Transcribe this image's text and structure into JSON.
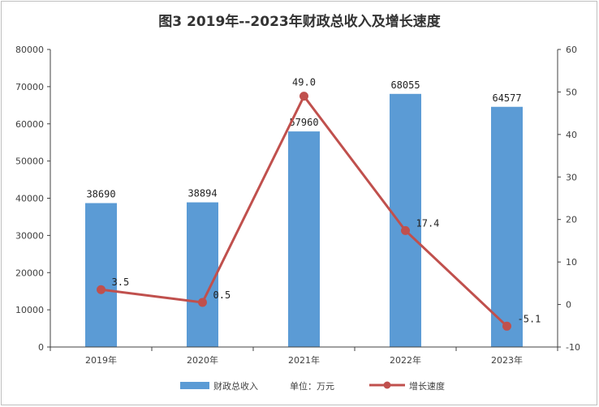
{
  "title": "图3   2019年--2023年财政总收入及增长速度",
  "legend": {
    "bar_label": "财政总收入",
    "unit_label": "单位：万元",
    "line_label": "增长速度"
  },
  "colors": {
    "bar": "#5b9bd5",
    "line": "#c0504d",
    "axis": "#404040"
  },
  "chart_data": {
    "type": "bar",
    "categories": [
      "2019年",
      "2020年",
      "2021年",
      "2022年",
      "2023年"
    ],
    "series": [
      {
        "name": "财政总收入",
        "type": "bar",
        "axis": "left",
        "values": [
          38690,
          38894,
          57960,
          68055,
          64577
        ],
        "labels": [
          "38690",
          "38894",
          "57960",
          "68055",
          "64577"
        ]
      },
      {
        "name": "增长速度",
        "type": "line",
        "axis": "right",
        "values": [
          3.5,
          0.5,
          49.0,
          17.4,
          -5.1
        ],
        "labels": [
          "3.5",
          "0.5",
          "49.0",
          "17.4",
          "-5.1"
        ]
      }
    ],
    "y_left": {
      "min": 0,
      "max": 80000,
      "step": 10000,
      "ticks": [
        "0",
        "10000",
        "20000",
        "30000",
        "40000",
        "50000",
        "60000",
        "70000",
        "80000"
      ]
    },
    "y_right": {
      "min": -10,
      "max": 60,
      "step": 10,
      "ticks": [
        "-10",
        "0",
        "10",
        "20",
        "30",
        "40",
        "50",
        "60"
      ]
    },
    "grid": false,
    "legend_position": "bottom"
  }
}
